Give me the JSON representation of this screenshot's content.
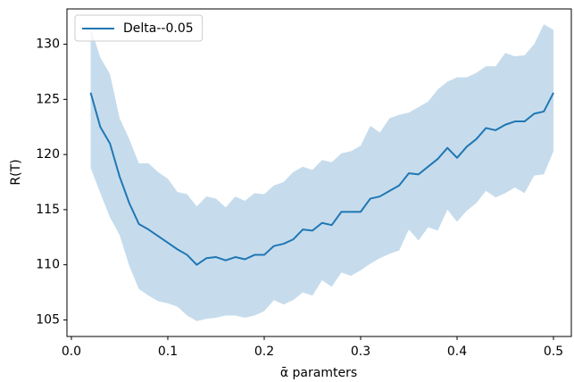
{
  "chart_data": {
    "type": "line",
    "x_label": "ᾱ paramters",
    "y_label": "R(T)",
    "x": [
      0.02,
      0.03,
      0.04,
      0.05,
      0.06,
      0.07,
      0.08,
      0.09,
      0.1,
      0.11,
      0.12,
      0.13,
      0.14,
      0.15,
      0.16,
      0.17,
      0.18,
      0.19,
      0.2,
      0.21,
      0.22,
      0.23,
      0.24,
      0.25,
      0.26,
      0.27,
      0.28,
      0.29,
      0.3,
      0.31,
      0.32,
      0.33,
      0.34,
      0.35,
      0.36,
      0.37,
      0.38,
      0.39,
      0.4,
      0.41,
      0.42,
      0.43,
      0.44,
      0.45,
      0.46,
      0.47,
      0.48,
      0.49,
      0.5
    ],
    "series": [
      {
        "name": "Delta--0.05",
        "color": "#1f77b4",
        "band_color": "#c6dcec",
        "values": [
          125.6,
          122.5,
          121.0,
          118.0,
          115.6,
          113.7,
          113.2,
          112.6,
          112.0,
          111.4,
          110.9,
          110.0,
          110.6,
          110.7,
          110.4,
          110.7,
          110.5,
          110.9,
          110.9,
          111.7,
          111.9,
          112.3,
          113.2,
          113.1,
          113.8,
          113.6,
          114.8,
          114.8,
          114.8,
          116.0,
          116.2,
          116.7,
          117.2,
          118.3,
          118.2,
          118.9,
          119.6,
          120.6,
          119.7,
          120.7,
          121.4,
          122.4,
          122.2,
          122.7,
          123.0,
          123.0,
          123.7,
          123.9,
          125.6
        ],
        "upper": [
          131.5,
          128.8,
          127.3,
          123.3,
          121.4,
          119.2,
          119.2,
          118.4,
          117.8,
          116.6,
          116.4,
          115.3,
          116.2,
          116.0,
          115.2,
          116.2,
          115.8,
          116.5,
          116.4,
          117.2,
          117.5,
          118.4,
          118.9,
          118.6,
          119.5,
          119.3,
          120.1,
          120.3,
          120.8,
          122.6,
          122.0,
          123.3,
          123.6,
          123.8,
          124.3,
          124.8,
          125.9,
          126.6,
          127.0,
          127.0,
          127.4,
          128.0,
          128.0,
          129.2,
          128.9,
          129.0,
          130.0,
          131.8,
          131.3
        ],
        "lower": [
          118.8,
          116.5,
          114.3,
          112.7,
          109.9,
          107.8,
          107.2,
          106.7,
          106.5,
          106.2,
          105.4,
          104.9,
          105.1,
          105.2,
          105.4,
          105.4,
          105.2,
          105.4,
          105.8,
          106.8,
          106.4,
          106.8,
          107.5,
          107.2,
          108.6,
          108.0,
          109.3,
          109.0,
          109.5,
          110.1,
          110.6,
          111.0,
          111.3,
          113.2,
          112.2,
          113.4,
          113.1,
          115.0,
          113.9,
          114.9,
          115.6,
          116.7,
          116.1,
          116.5,
          117.0,
          116.5,
          118.1,
          118.2,
          120.3
        ]
      }
    ],
    "xlim": [
      -0.0046,
      0.5185
    ],
    "ylim": [
      103.5,
      133.2
    ],
    "xticks": [
      {
        "value": 0,
        "label": "0.0"
      },
      0.1,
      0.2,
      0.3,
      0.4,
      0.5
    ],
    "yticks": [
      105,
      110,
      115,
      120,
      125,
      130
    ],
    "legend": "upper left"
  }
}
